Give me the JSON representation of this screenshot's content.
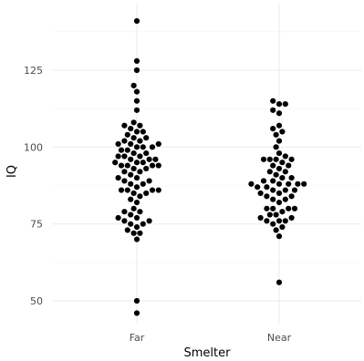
{
  "chart_data": {
    "type": "scatter",
    "subtype": "beeswarm",
    "title": "",
    "xlabel": "Smelter",
    "ylabel": "IQ",
    "categories": [
      "Far",
      "Near"
    ],
    "ylim": [
      43,
      145
    ],
    "yticks": [
      50,
      75,
      100,
      125
    ],
    "grid": true,
    "legend": "none",
    "series": [
      {
        "category": "Far",
        "values": [
          141,
          128,
          125,
          120,
          118,
          115,
          112,
          108,
          107,
          107,
          106,
          105,
          105,
          104,
          103,
          103,
          102,
          102,
          101,
          101,
          101,
          100,
          100,
          100,
          99,
          99,
          98,
          98,
          97,
          97,
          97,
          96,
          96,
          96,
          95,
          95,
          95,
          94,
          94,
          94,
          94,
          93,
          93,
          92,
          92,
          91,
          90,
          90,
          89,
          89,
          88,
          88,
          87,
          86,
          86,
          86,
          86,
          85,
          85,
          84,
          83,
          82,
          80,
          79,
          79,
          78,
          77,
          77,
          76,
          76,
          75,
          75,
          74,
          73,
          72,
          72,
          70,
          50,
          46
        ]
      },
      {
        "category": "Near",
        "values": [
          115,
          114,
          114,
          112,
          111,
          107,
          106,
          105,
          104,
          102,
          100,
          98,
          97,
          96,
          96,
          96,
          96,
          95,
          94,
          94,
          93,
          92,
          92,
          91,
          90,
          90,
          89,
          89,
          88,
          88,
          88,
          88,
          88,
          87,
          87,
          86,
          86,
          86,
          85,
          85,
          84,
          84,
          83,
          83,
          82,
          80,
          80,
          80,
          80,
          79,
          78,
          78,
          77,
          77,
          76,
          76,
          76,
          75,
          74,
          73,
          71,
          56
        ]
      }
    ],
    "colors": {
      "point": "#000000",
      "grid": "#ebebeb",
      "text": "#4d4d4d"
    }
  }
}
